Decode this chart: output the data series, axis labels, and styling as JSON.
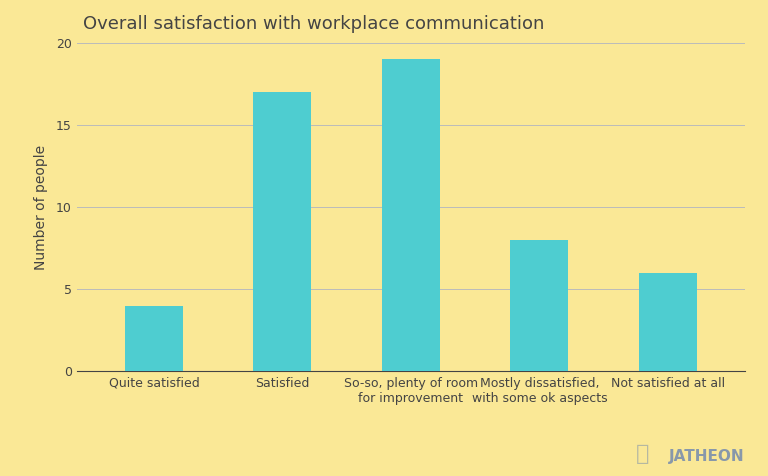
{
  "title": "Overall satisfaction with workplace communication",
  "categories": [
    "Quite satisfied",
    "Satisfied",
    "So-so, plenty of room\nfor improvement",
    "Mostly dissatisfied,\nwith some ok aspects",
    "Not satisfied at all"
  ],
  "values": [
    4,
    17,
    19,
    8,
    6
  ],
  "bar_color": "#4ECDD0",
  "background_color": "#FAE896",
  "ylabel": "Number of people",
  "ylim": [
    0,
    20
  ],
  "yticks": [
    0,
    5,
    10,
    15,
    20
  ],
  "title_fontsize": 13,
  "axis_label_fontsize": 10,
  "tick_fontsize": 9,
  "grid_color": "#bbbbbb",
  "text_color": "#444444",
  "watermark_text": "JATHEON",
  "watermark_color": "#8898aa"
}
